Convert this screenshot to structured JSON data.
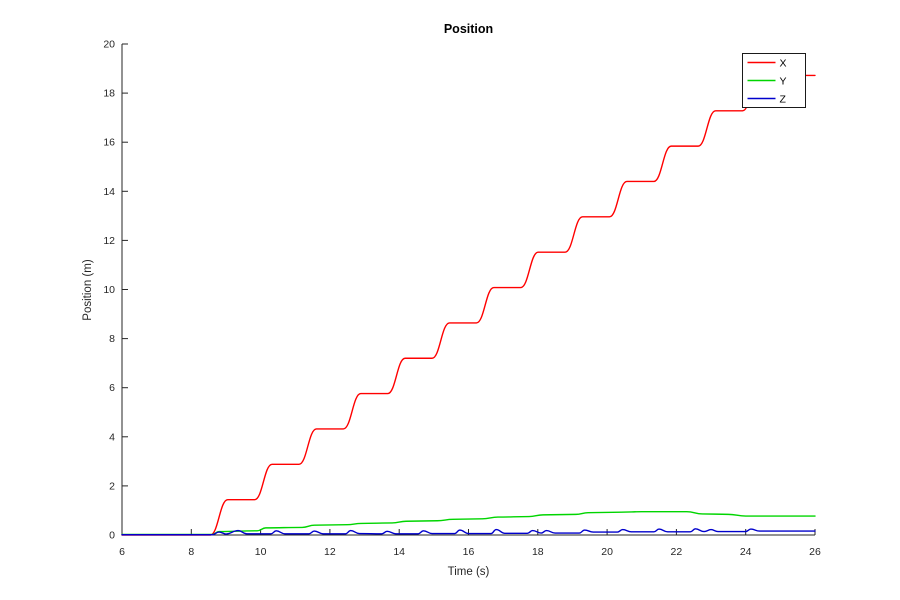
{
  "window": {
    "background": "#ffffff"
  },
  "chart_data": {
    "type": "line",
    "title": "Position",
    "xlabel": "Time (s)",
    "ylabel": "Position (m)",
    "xlim": [
      6,
      26
    ],
    "ylim": [
      0,
      20
    ],
    "xticks": [
      "6",
      "8",
      "10",
      "12",
      "14",
      "16",
      "18",
      "20",
      "22",
      "24",
      "26"
    ],
    "xtick_values": [
      6,
      8,
      10,
      12,
      14,
      16,
      18,
      20,
      22,
      24,
      26
    ],
    "yticks": [
      "0",
      "2",
      "4",
      "6",
      "8",
      "10",
      "12",
      "14",
      "16",
      "18",
      "20"
    ],
    "ytick_values": [
      0,
      2,
      4,
      6,
      8,
      10,
      12,
      14,
      16,
      18,
      20
    ],
    "grid": false,
    "legend_position": "top-right",
    "axis_color": "#262626",
    "series": [
      {
        "name": "X",
        "color": "#ff0000",
        "points": [
          [
            6,
            0
          ],
          [
            8.55,
            0
          ],
          [
            9.05,
            1.44
          ],
          [
            9.83,
            1.44
          ],
          [
            10.33,
            2.88
          ],
          [
            11.11,
            2.88
          ],
          [
            11.61,
            4.32
          ],
          [
            12.39,
            4.32
          ],
          [
            12.89,
            5.76
          ],
          [
            13.67,
            5.76
          ],
          [
            14.17,
            7.2
          ],
          [
            14.95,
            7.2
          ],
          [
            15.45,
            8.64
          ],
          [
            16.23,
            8.64
          ],
          [
            16.73,
            10.08
          ],
          [
            17.51,
            10.08
          ],
          [
            18.01,
            11.52
          ],
          [
            18.79,
            11.52
          ],
          [
            19.29,
            12.96
          ],
          [
            20.07,
            12.96
          ],
          [
            20.57,
            14.4
          ],
          [
            21.35,
            14.4
          ],
          [
            21.85,
            15.84
          ],
          [
            22.63,
            15.84
          ],
          [
            23.13,
            17.28
          ],
          [
            23.91,
            17.28
          ],
          [
            24.41,
            18.72
          ],
          [
            26,
            18.72
          ]
        ]
      },
      {
        "name": "Y",
        "color": "#00d500",
        "points": [
          [
            6,
            0.02
          ],
          [
            8.6,
            0.02
          ],
          [
            8.8,
            0.14
          ],
          [
            9.9,
            0.17
          ],
          [
            10.15,
            0.29
          ],
          [
            11.2,
            0.31
          ],
          [
            11.55,
            0.4
          ],
          [
            12.5,
            0.42
          ],
          [
            12.9,
            0.47
          ],
          [
            13.8,
            0.49
          ],
          [
            14.2,
            0.56
          ],
          [
            15.1,
            0.58
          ],
          [
            15.55,
            0.64
          ],
          [
            16.4,
            0.66
          ],
          [
            16.85,
            0.73
          ],
          [
            17.75,
            0.75
          ],
          [
            18.15,
            0.82
          ],
          [
            19.1,
            0.84
          ],
          [
            19.45,
            0.91
          ],
          [
            20.4,
            0.93
          ],
          [
            21.0,
            0.95
          ],
          [
            22.3,
            0.95
          ],
          [
            22.75,
            0.86
          ],
          [
            23.5,
            0.84
          ],
          [
            24.0,
            0.77
          ],
          [
            26,
            0.77
          ]
        ]
      },
      {
        "name": "Z",
        "color": "#0000cc",
        "points": [
          [
            6,
            0.01
          ],
          [
            8.6,
            0.01
          ],
          [
            8.8,
            0.12
          ],
          [
            9.0,
            0.04
          ],
          [
            9.35,
            0.18
          ],
          [
            9.6,
            0.05
          ],
          [
            10.3,
            0.05
          ],
          [
            10.45,
            0.17
          ],
          [
            10.7,
            0.05
          ],
          [
            11.4,
            0.05
          ],
          [
            11.55,
            0.16
          ],
          [
            11.8,
            0.05
          ],
          [
            12.45,
            0.05
          ],
          [
            12.6,
            0.18
          ],
          [
            12.85,
            0.06
          ],
          [
            13.5,
            0.05
          ],
          [
            13.65,
            0.15
          ],
          [
            13.9,
            0.05
          ],
          [
            14.55,
            0.05
          ],
          [
            14.7,
            0.17
          ],
          [
            14.95,
            0.06
          ],
          [
            15.6,
            0.06
          ],
          [
            15.75,
            0.2
          ],
          [
            16.0,
            0.06
          ],
          [
            16.65,
            0.06
          ],
          [
            16.8,
            0.22
          ],
          [
            17.05,
            0.07
          ],
          [
            17.7,
            0.07
          ],
          [
            17.85,
            0.18
          ],
          [
            18.1,
            0.08
          ],
          [
            18.25,
            0.18
          ],
          [
            18.5,
            0.08
          ],
          [
            19.2,
            0.08
          ],
          [
            19.35,
            0.2
          ],
          [
            19.6,
            0.12
          ],
          [
            20.3,
            0.12
          ],
          [
            20.45,
            0.22
          ],
          [
            20.7,
            0.13
          ],
          [
            21.35,
            0.13
          ],
          [
            21.5,
            0.24
          ],
          [
            21.75,
            0.13
          ],
          [
            22.4,
            0.13
          ],
          [
            22.55,
            0.25
          ],
          [
            22.8,
            0.14
          ],
          [
            23.0,
            0.22
          ],
          [
            23.2,
            0.14
          ],
          [
            24.0,
            0.14
          ],
          [
            24.15,
            0.24
          ],
          [
            24.4,
            0.16
          ],
          [
            26,
            0.16
          ]
        ]
      }
    ]
  }
}
